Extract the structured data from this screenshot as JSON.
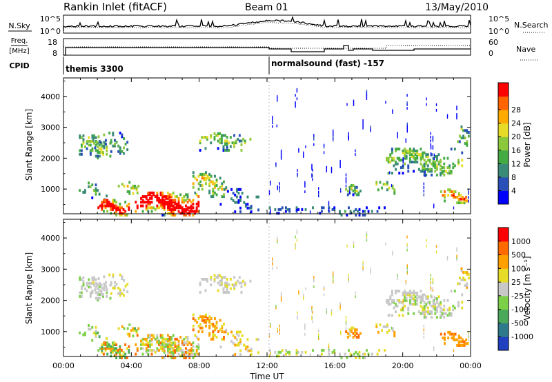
{
  "header": {
    "station_title": "Rankin Inlet (fitACF)",
    "beam": "Beam 01",
    "date": "13/May/2010"
  },
  "aux_panels": {
    "nsky_label": "N.Sky",
    "nsearch_label": "N.Search",
    "noise_ticks_left": [
      "10^5",
      "10^0"
    ],
    "noise_ticks_right": [
      "10^5",
      "10^0"
    ],
    "freq_label": "Freq.",
    "freq_unit": "[MHz]",
    "freq_ticks": [
      "18",
      "8"
    ],
    "nave_label": "Nave",
    "nave_ticks": [
      "60",
      "0"
    ],
    "cpid_label": "CPID",
    "cpid_1": "themis 3300",
    "cpid_2": "normalsound (fast) -157"
  },
  "chart_data": [
    {
      "type": "heatmap",
      "name": "power",
      "ylabel": "Slant Range [km]",
      "yticks": [
        "1000",
        "2000",
        "3000",
        "4000"
      ],
      "ylim": [
        200,
        4600
      ],
      "xlim": [
        0,
        24
      ],
      "colorbar": {
        "label": "Power [dB]",
        "range": [
          0,
          32
        ],
        "ticks": [
          "4",
          "8",
          "12",
          "16",
          "20",
          "24",
          "28"
        ],
        "colors": [
          "#0000ff",
          "#2850b8",
          "#3a8a78",
          "#44aa44",
          "#8cc83c",
          "#e6dc28",
          "#ffaa00",
          "#ff6400",
          "#ff0000"
        ]
      }
    },
    {
      "type": "heatmap",
      "name": "velocity",
      "ylabel": "Slant Range [km]",
      "yticks": [
        "1000",
        "2000",
        "3000",
        "4000"
      ],
      "ylim": [
        200,
        4600
      ],
      "xlim": [
        0,
        24
      ],
      "xlabel": "Time UT",
      "xticks": [
        "00:00",
        "04:00",
        "08:00",
        "12:00",
        "16:00",
        "20:00",
        "00:00"
      ],
      "colorbar": {
        "label": "Velocity [m s⁻¹]",
        "ticks": [
          "1000",
          "500",
          "100",
          "25",
          "-25",
          "-100",
          "-500",
          "-1000"
        ],
        "colors": [
          "#2040c0",
          "#2e7a8c",
          "#4aa85a",
          "#7cd048",
          "#c8c8c8",
          "#e6dc28",
          "#ffa000",
          "#ff6a00",
          "#ff0000"
        ]
      }
    }
  ]
}
